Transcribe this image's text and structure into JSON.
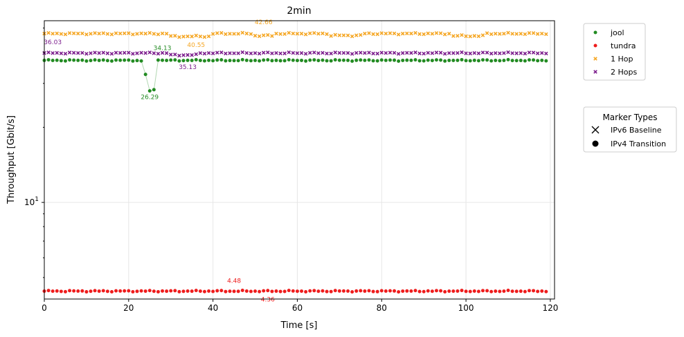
{
  "chart_data": {
    "type": "scatter",
    "title": "2min",
    "xlabel": "Time [s]",
    "ylabel": "Throughput [Gbit/s]",
    "xlim": [
      0,
      121
    ],
    "ylim": [
      4.1,
      53.5
    ],
    "y_scale": "log",
    "grid": true,
    "x_ticks": [
      0,
      20,
      40,
      60,
      80,
      100,
      120
    ],
    "x_tick_labels": [
      "0",
      "20",
      "40",
      "60",
      "80",
      "100",
      "120"
    ],
    "y_major_ticks": [
      10
    ],
    "y_major_tick_labels": [
      "10"
    ],
    "y_minor_ticks": [
      5,
      6,
      7,
      8,
      9,
      20,
      30,
      40,
      50
    ],
    "series": [
      {
        "name": "jool",
        "color": "#228b22",
        "marker": "circle",
        "base": 37.1,
        "amp": 0.25,
        "overrides": {
          "23": 36.9,
          "24": 32.6,
          "25": 28.0,
          "26": 28.3,
          "27": 37.2
        },
        "connect_range": [
          22,
          28
        ]
      },
      {
        "name": "tundra",
        "color": "#ee1c1c",
        "marker": "circle",
        "base": 4.41,
        "amp": 0.03
      },
      {
        "name": "1 Hop",
        "color": "#f5a623",
        "marker": "x",
        "base": 47.5,
        "amp": 0.4,
        "dips": [
          [
            30,
            39,
            46.3
          ],
          [
            50,
            54,
            46.6
          ],
          [
            68,
            75,
            46.7
          ],
          [
            97,
            104,
            46.5
          ]
        ]
      },
      {
        "name": "2 Hops",
        "color": "#7b1c8c",
        "marker": "x",
        "base": 39.7,
        "amp": 0.3,
        "dips": [
          [
            30,
            36,
            39.0
          ]
        ]
      }
    ],
    "annotations": [
      {
        "text": "26.29",
        "x": 25,
        "y": 28.0,
        "color": "#228b22",
        "pos": "below"
      },
      {
        "text": "34.13",
        "x": 28,
        "y": 39.0,
        "color": "#228b22",
        "pos": "above"
      },
      {
        "text": "36.03",
        "x": 2,
        "y": 41.2,
        "color": "#7b1c8c",
        "pos": "above"
      },
      {
        "text": "35.13",
        "x": 34,
        "y": 37.0,
        "color": "#7b1c8c",
        "pos": "below"
      },
      {
        "text": "40.55",
        "x": 36,
        "y": 40.2,
        "color": "#f5a623",
        "pos": "above"
      },
      {
        "text": "42.66",
        "x": 52,
        "y": 49.5,
        "color": "#f5a623",
        "pos": "above"
      },
      {
        "text": "4.48",
        "x": 45,
        "y": 4.55,
        "color": "#ee1c1c",
        "pos": "above"
      },
      {
        "text": "4.36",
        "x": 53,
        "y": 4.33,
        "color": "#ee1c1c",
        "pos": "below"
      }
    ],
    "legend_position": "outside-right",
    "legend2_title": "Marker Types",
    "legend2_entries": [
      {
        "label": "IPv6 Baseline",
        "marker": "x"
      },
      {
        "label": "IPv4 Transition",
        "marker": "circle"
      }
    ]
  }
}
